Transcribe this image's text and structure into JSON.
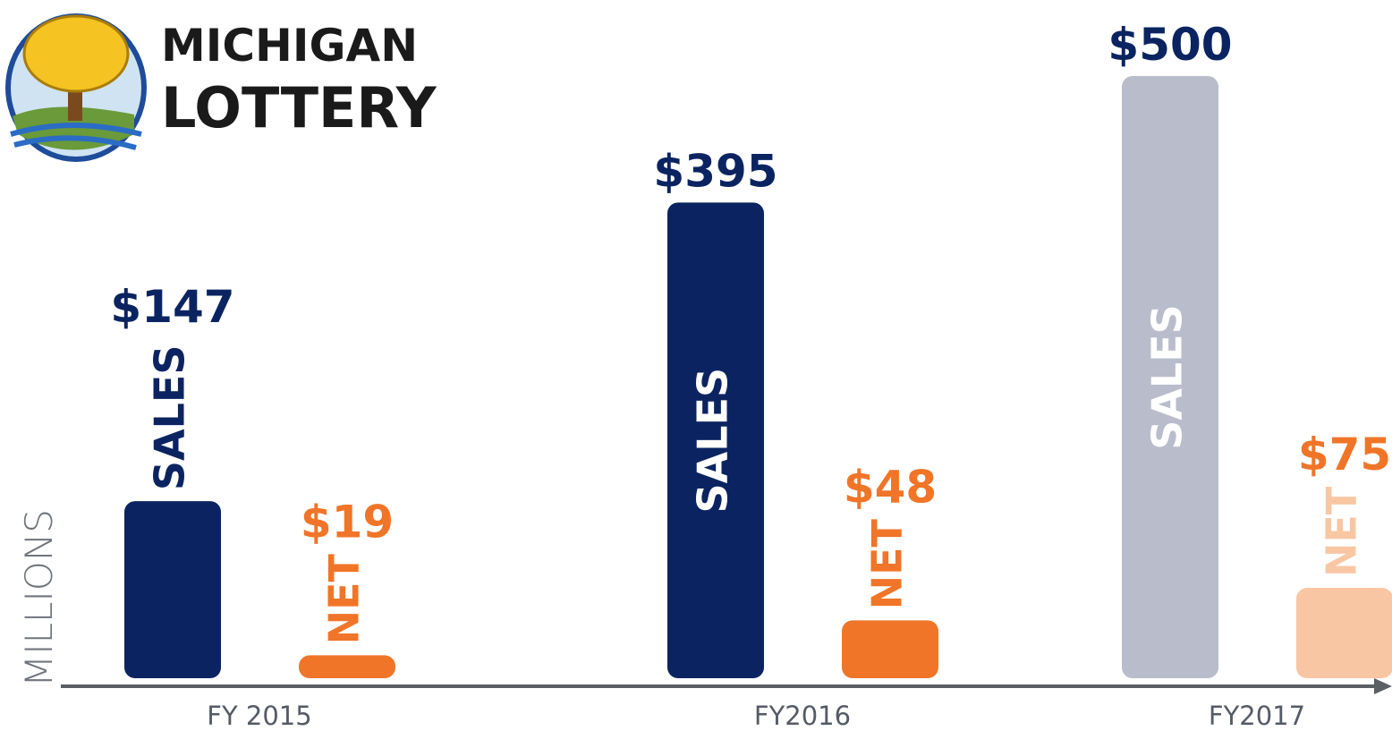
{
  "logo": {
    "line1": "MICHIGAN",
    "line2": "LOTTERY"
  },
  "chart_data": {
    "type": "bar",
    "y_label": "MILLIONS",
    "categories": [
      "FY 2015",
      "FY2016",
      "FY2017"
    ],
    "series": [
      {
        "name": "SALES",
        "color": "#0b2461",
        "colors": [
          "#0b2461",
          "#0b2461",
          "#b9bccb"
        ],
        "label_color": "#0b2461",
        "values": [
          147,
          395,
          500
        ],
        "value_labels": [
          "$147",
          "$395",
          "$500"
        ]
      },
      {
        "name": "NET",
        "color": "#f07528",
        "colors": [
          "#f07528",
          "#f07528",
          "#f9c6a3"
        ],
        "label_color": "#f07528",
        "values": [
          19,
          48,
          75
        ],
        "value_labels": [
          "$19",
          "$48",
          "$75"
        ]
      }
    ]
  }
}
